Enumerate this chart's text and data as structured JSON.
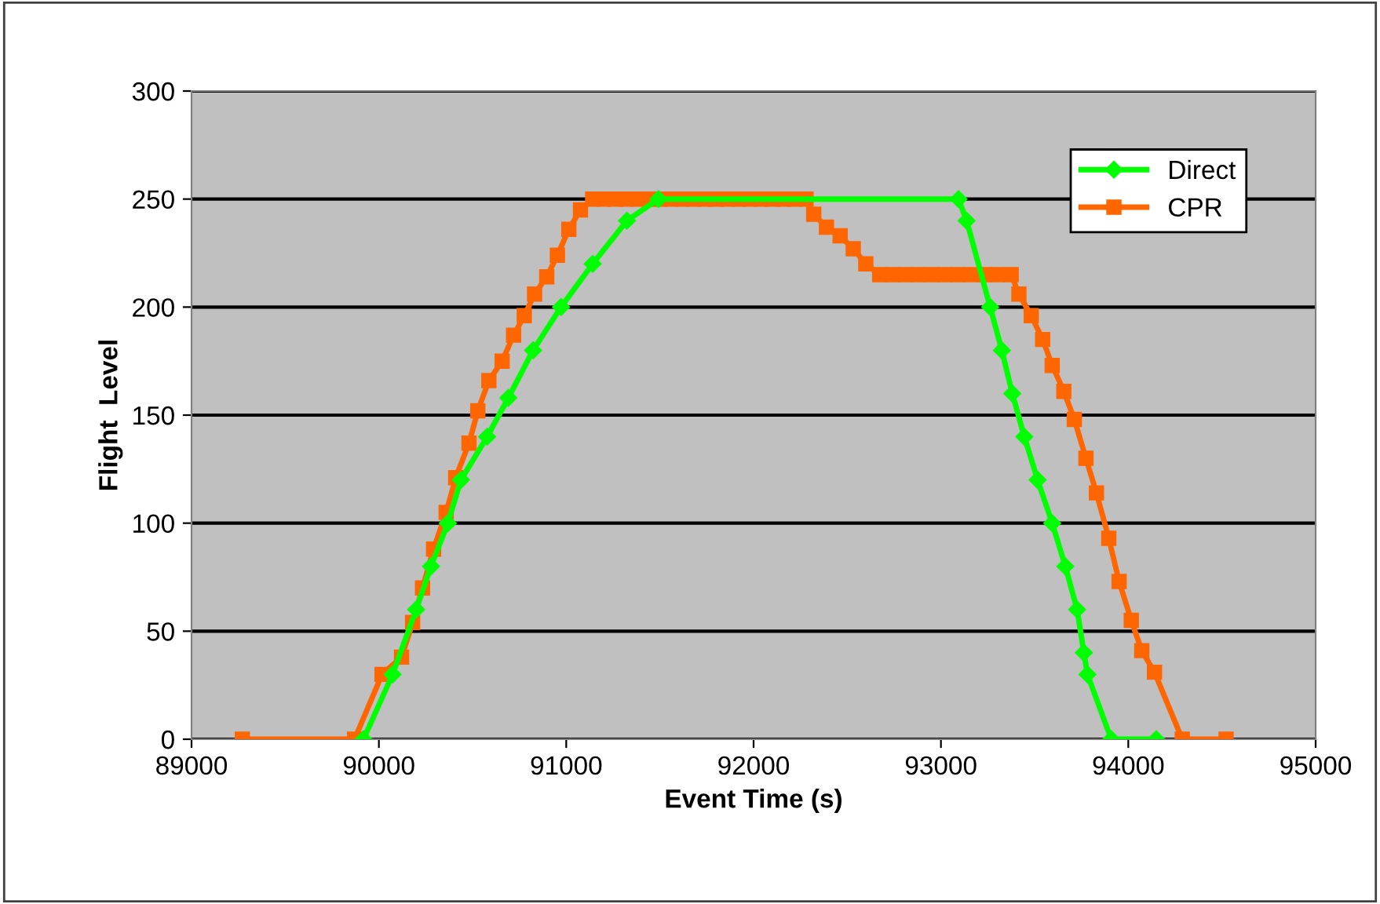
{
  "chart_data": {
    "type": "line",
    "xlabel": "Event Time (s)",
    "ylabel": "Flight  Level",
    "xlim": [
      89000,
      95000
    ],
    "xticks": [
      89000,
      90000,
      91000,
      92000,
      93000,
      94000,
      95000
    ],
    "ylim": [
      0,
      300
    ],
    "yticks": [
      0,
      50,
      100,
      150,
      200,
      250,
      300
    ],
    "grid": "y",
    "legend": "top right",
    "line_style": "solid",
    "series": [
      {
        "name": "Direct",
        "color": "#00ff00",
        "marker": "diamond",
        "x": [
          89918,
          90073,
          90199,
          90278,
          90368,
          90438,
          90578,
          90691,
          90823,
          90972,
          91141,
          91324,
          91492,
          93094,
          93137,
          93263,
          93325,
          93381,
          93445,
          93516,
          93594,
          93664,
          93727,
          93763,
          93782,
          93909,
          94149
        ],
        "values": [
          0,
          30,
          60,
          80,
          100,
          120,
          140,
          158,
          180,
          200,
          220,
          240,
          250,
          250,
          240,
          200,
          180,
          160,
          140,
          120,
          100,
          80,
          60,
          40,
          30,
          0,
          0
        ]
      },
      {
        "name": "CPR",
        "color": "#ff6600",
        "marker": "square",
        "x": [
          89271,
          89870,
          90017,
          90121,
          90180,
          90233,
          90292,
          90359,
          90410,
          90481,
          90528,
          90587,
          90658,
          90719,
          90776,
          90831,
          90896,
          90953,
          91014,
          91076,
          91141,
          91200,
          91260,
          91320,
          91380,
          91440,
          91500,
          91560,
          91620,
          91680,
          91740,
          91800,
          91860,
          91920,
          91980,
          92040,
          92100,
          92160,
          92220,
          92280,
          92321,
          92389,
          92462,
          92532,
          92599,
          92673,
          92740,
          92810,
          92880,
          92950,
          93020,
          93090,
          93160,
          93230,
          93300,
          93375,
          93416,
          93482,
          93543,
          93594,
          93656,
          93712,
          93774,
          93830,
          93896,
          93951,
          94016,
          94072,
          94140,
          94288,
          94522
        ],
        "values": [
          0,
          0,
          30,
          38,
          54,
          70,
          88,
          105,
          121,
          137,
          152,
          166,
          175,
          187,
          196,
          206,
          214,
          224,
          236,
          245,
          250,
          250,
          250,
          250,
          250,
          250,
          250,
          250,
          250,
          250,
          250,
          250,
          250,
          250,
          250,
          250,
          250,
          250,
          250,
          250,
          243,
          237,
          233,
          227,
          220,
          215,
          215,
          215,
          215,
          215,
          215,
          215,
          215,
          215,
          215,
          215,
          206,
          196,
          185,
          173,
          161,
          148,
          130,
          114,
          93,
          73,
          55,
          41,
          31,
          0,
          0
        ]
      }
    ]
  }
}
